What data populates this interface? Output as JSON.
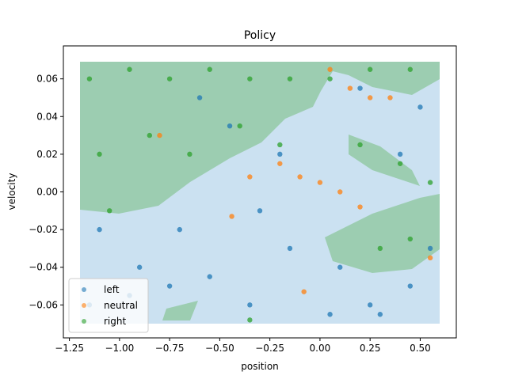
{
  "chart_data": {
    "type": "scatter",
    "title": "Policy",
    "xlabel": "position",
    "ylabel": "velocity",
    "xlim": [
      -1.28,
      0.68
    ],
    "ylim": [
      -0.0775,
      0.0775
    ],
    "xticks": [
      -1.25,
      -1.0,
      -0.75,
      -0.5,
      -0.25,
      0.0,
      0.25,
      0.5
    ],
    "xtick_labels": [
      "−1.25",
      "−1.00",
      "−0.75",
      "−0.50",
      "−0.25",
      "0.00",
      "0.25",
      "0.50"
    ],
    "yticks": [
      -0.06,
      -0.04,
      -0.02,
      0.0,
      0.02,
      0.04,
      0.06
    ],
    "ytick_labels": [
      "−0.06",
      "−0.04",
      "−0.02",
      "0.00",
      "0.02",
      "0.04",
      "0.06"
    ],
    "grid": false,
    "legend_position": "lower-left",
    "series": [
      {
        "name": "left",
        "color": "#1f77b4",
        "x": [
          -1.15,
          -0.95,
          -0.75,
          -0.55,
          -0.35,
          -0.15,
          0.05,
          0.25,
          0.45,
          -1.1,
          -0.7,
          -0.3,
          0.1,
          0.5,
          -0.9,
          -0.45,
          0.2,
          0.4,
          0.55,
          -0.6,
          -0.2,
          0.3
        ],
        "y": [
          -0.06,
          -0.055,
          -0.05,
          -0.045,
          -0.06,
          -0.03,
          -0.065,
          -0.06,
          -0.05,
          -0.02,
          -0.02,
          -0.01,
          -0.04,
          0.045,
          -0.04,
          0.035,
          0.055,
          0.02,
          -0.03,
          0.05,
          0.02,
          -0.065
        ]
      },
      {
        "name": "neutral",
        "color": "#ff7f0e",
        "x": [
          0.05,
          0.15,
          0.25,
          0.35,
          -0.35,
          -0.2,
          -0.1,
          0.0,
          0.1,
          0.2,
          -0.08,
          -0.44,
          0.55,
          -0.8
        ],
        "y": [
          0.065,
          0.055,
          0.05,
          0.05,
          0.008,
          0.015,
          0.008,
          0.005,
          0.0,
          -0.008,
          -0.053,
          -0.013,
          -0.035,
          0.03
        ]
      },
      {
        "name": "right",
        "color": "#2ca02c",
        "x": [
          -1.15,
          -0.95,
          -0.75,
          -0.55,
          -0.35,
          -0.15,
          0.05,
          0.25,
          0.45,
          -1.1,
          -0.85,
          -0.65,
          -0.4,
          -0.2,
          0.2,
          0.4,
          0.55,
          0.3,
          0.45,
          -1.05,
          -0.35
        ],
        "y": [
          0.06,
          0.065,
          0.06,
          0.065,
          0.06,
          0.06,
          0.06,
          0.065,
          0.065,
          0.02,
          0.03,
          0.02,
          0.035,
          0.025,
          0.025,
          0.015,
          0.005,
          -0.03,
          -0.025,
          -0.01,
          -0.068
        ]
      }
    ]
  }
}
